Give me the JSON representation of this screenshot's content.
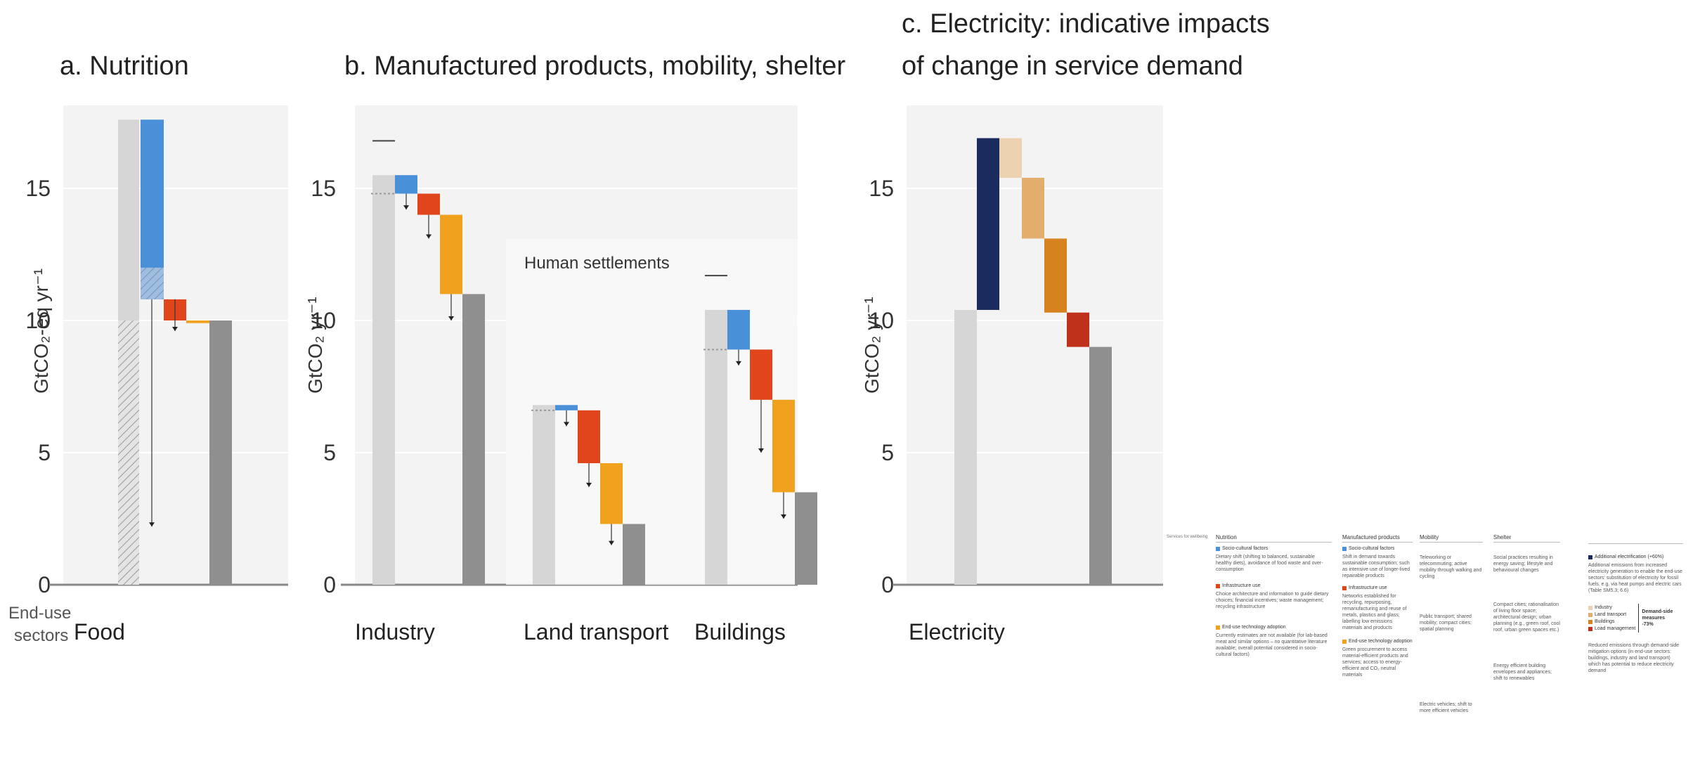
{
  "colors": {
    "socio": "#4a90d9",
    "infra": "#e0451b",
    "tech": "#f0a21e",
    "baseline": "#d6d6d6",
    "result": "#8f8f8f",
    "electrification": "#1a2b5e",
    "industry": "#ecd2b0",
    "landtransport": "#e3ad6e",
    "buildings": "#d6821e",
    "load": "#c0311c",
    "panel_bg": "#f3f3f3"
  },
  "panels": {
    "a": {
      "title": "a. Nutrition"
    },
    "b": {
      "title": "b. Manufactured products, mobility, shelter",
      "annotation": "Human settlements"
    },
    "c": {
      "title_line1": "c. Electricity: indicative impacts",
      "title_line2": "of change in service demand"
    }
  },
  "axis_labels": {
    "a": "GtCO₂-eq yr⁻¹",
    "b": "GtCO₂ yr⁻¹",
    "c": "GtCO₂ yr⁻¹"
  },
  "end_use_label": [
    "End-use",
    "sectors"
  ],
  "chart_data": [
    {
      "type": "bar",
      "title": "a. Nutrition",
      "ylabel": "GtCO₂-eq yr⁻¹",
      "ylim": [
        0,
        17.6
      ],
      "yticks": [
        0,
        5,
        10,
        15
      ],
      "categories": [
        "Food"
      ],
      "series": [
        {
          "name": "",
          "kind": "baseline",
          "values": [
            17.6
          ]
        },
        {
          "name": "Socio-cultural factors",
          "kind": "step",
          "from": 17.6,
          "to": 10.8
        },
        {
          "name": "Infrastructure use",
          "kind": "step",
          "from": 10.8,
          "to": 10.0
        },
        {
          "name": "End-use technology adoption",
          "kind": "step",
          "from": 10.0,
          "to": 10.0
        },
        {
          "name": "",
          "kind": "result",
          "values": [
            10.0
          ]
        }
      ]
    },
    {
      "type": "bar",
      "title": "b. Manufactured products, mobility, shelter",
      "ylabel": "GtCO₂ yr⁻¹",
      "ylim": [
        0,
        17.6
      ],
      "yticks": [
        0,
        5,
        10,
        15
      ],
      "categories": [
        "Industry",
        "Land transport",
        "Buildings"
      ],
      "groups": [
        {
          "category": "Industry",
          "baseline": 15.5,
          "steps": [
            [
              15.5,
              14.8
            ],
            [
              14.8,
              14.0
            ],
            [
              14.0,
              11.0
            ]
          ],
          "result": 11.0
        },
        {
          "category": "Land transport",
          "baseline": 6.8,
          "steps": [
            [
              6.8,
              6.6
            ],
            [
              6.6,
              4.6
            ],
            [
              4.6,
              2.3
            ]
          ],
          "result": 2.3
        },
        {
          "category": "Buildings",
          "baseline": 10.4,
          "steps": [
            [
              10.4,
              8.9
            ],
            [
              8.9,
              7.0
            ],
            [
              7.0,
              3.5
            ]
          ],
          "result": 3.5
        }
      ]
    },
    {
      "type": "bar",
      "title": "c. Electricity: indicative impacts of change in service demand",
      "ylabel": "GtCO₂ yr⁻¹",
      "ylim": [
        0,
        17.6
      ],
      "yticks": [
        0,
        5,
        10,
        15
      ],
      "categories": [
        "Electricity"
      ],
      "baseline": 10.4,
      "steps": [
        {
          "name": "Additional electrification (+60%)",
          "from": 10.4,
          "to": 16.9
        },
        {
          "name": "Industry",
          "from": 16.9,
          "to": 15.4
        },
        {
          "name": "Land transport",
          "from": 15.4,
          "to": 13.1
        },
        {
          "name": "Buildings",
          "from": 13.1,
          "to": 10.3
        },
        {
          "name": "Load management",
          "from": 10.3,
          "to": 9.0
        }
      ],
      "result": 9.0
    }
  ],
  "legend": {
    "services_label": "Services for wellbeing",
    "headers": [
      "Nutrition",
      "Manufactured products",
      "Mobility",
      "Shelter"
    ],
    "socio_label": "Socio-cultural factors",
    "infra_label": "Infrastructure use",
    "tech_label": "End-use technology adoption",
    "nutrition": {
      "socio": "Dietary shift (shifting to balanced, sustainable healthy diets), avoidance of food waste and over-consumption",
      "infra": "Choice architecture and information to guide dietary choices; financial incentives; waste management; recycling infrastructure",
      "tech": "Currently estimates are not available (for lab-based meat and similar options – no quantitative literature available; overall potential considered in socio-cultural factors)"
    },
    "manufactured": {
      "socio": "Shift in demand towards sustainable consumption; such as intensive use of longer-lived repairable products",
      "infra": "Networks established for recycling, repurposing, remanufacturing and reuse of metals, plastics and glass; labelling low emissions materials and products",
      "tech": "Green procurement to access material-efficient products and services; access to energy-efficient and CO₂ neutral materials"
    },
    "mobility": {
      "socio": "Teleworking or telecommuting; active mobility through walking and cycling",
      "infra": "Public transport; shared mobility; compact cities; spatial planning",
      "tech": "Electric vehicles; shift to more efficient vehicles"
    },
    "shelter": {
      "socio": "Social practices resulting in energy saving; lifestyle and behavioural changes",
      "infra": "Compact cities; rationalisation of living floor space; architectural design; urban planning (e.g., green roof, cool roof, urban green spaces etc.)",
      "tech": "Energy efficient building envelopes and appliances; shift to renewables"
    },
    "electricity": {
      "add_label": "Additional electrification (+60%)",
      "add_text": "Additional emissions from increased electricity generation to enable the end-use sectors' substitution of electricity for fossil fuels, e.g. via heat pumps and electric cars (Table SM5.3; 6.6)",
      "items": [
        "Industry",
        "Land transport",
        "Buildings",
        "Load management"
      ],
      "demand_side": "Demand-side measures",
      "demand_pct": "-73%",
      "reduced_text": "Reduced emissions through demand-side mitigation options (in end-use sectors: buildings, industry and land transport) which has potential to reduce electricity demand"
    }
  }
}
